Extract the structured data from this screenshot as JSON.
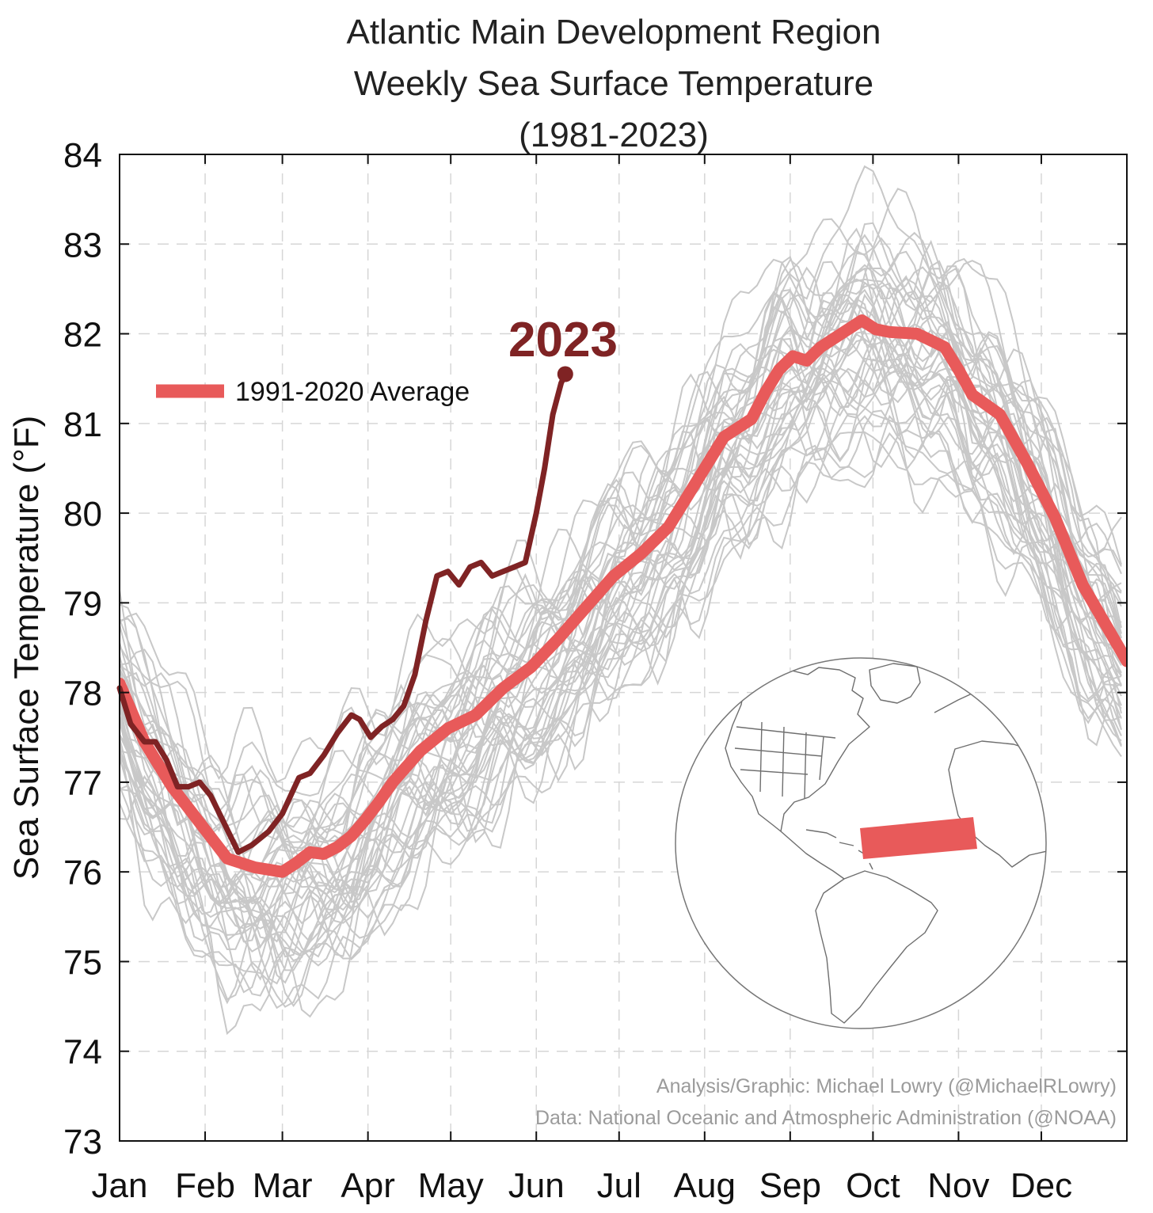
{
  "chart_data": {
    "type": "line",
    "title_lines": [
      "Atlantic Main Development Region",
      "Weekly Sea Surface Temperature",
      "(1981-2023)"
    ],
    "ylabel": "Sea Surface Temperature (°F)",
    "xlabel": "",
    "ylim": [
      73,
      84
    ],
    "yticks": [
      73,
      74,
      75,
      76,
      77,
      78,
      79,
      80,
      81,
      82,
      83,
      84
    ],
    "xticks": [
      {
        "label": "Jan",
        "day": 1
      },
      {
        "label": "Feb",
        "day": 32
      },
      {
        "label": "Mar",
        "day": 60
      },
      {
        "label": "Apr",
        "day": 91
      },
      {
        "label": "May",
        "day": 121
      },
      {
        "label": "Jun",
        "day": 152
      },
      {
        "label": "Jul",
        "day": 182
      },
      {
        "label": "Aug",
        "day": 213
      },
      {
        "label": "Sep",
        "day": 244
      },
      {
        "label": "Oct",
        "day": 274
      },
      {
        "label": "Nov",
        "day": 305
      },
      {
        "label": "Dec",
        "day": 335
      }
    ],
    "xlim": [
      1,
      366
    ],
    "grid": true,
    "colors": {
      "average": "#e85a5a",
      "year2023": "#7f2324",
      "history": "#c8c8c8"
    },
    "series": [
      {
        "name": "1991-2020 Average",
        "x": [
          1,
          10,
          20,
          30,
          40,
          50,
          60,
          65,
          70,
          75,
          80,
          85,
          90,
          95,
          100,
          110,
          120,
          130,
          140,
          150,
          160,
          170,
          180,
          190,
          200,
          210,
          220,
          230,
          235,
          240,
          245,
          250,
          255,
          260,
          270,
          275,
          280,
          290,
          300,
          305,
          310,
          320,
          330,
          340,
          350,
          366
        ],
        "y": [
          78.1,
          77.45,
          76.95,
          76.55,
          76.15,
          76.05,
          76.0,
          76.1,
          76.22,
          76.2,
          76.28,
          76.4,
          76.58,
          76.78,
          77.0,
          77.35,
          77.6,
          77.75,
          78.05,
          78.28,
          78.6,
          78.95,
          79.3,
          79.55,
          79.85,
          80.35,
          80.85,
          81.05,
          81.35,
          81.6,
          81.75,
          81.7,
          81.85,
          81.95,
          82.15,
          82.05,
          82.02,
          82.0,
          81.85,
          81.6,
          81.32,
          81.1,
          80.55,
          79.95,
          79.2,
          78.35
        ]
      },
      {
        "name": "2023",
        "x": [
          1,
          5,
          10,
          14,
          18,
          22,
          26,
          30,
          34,
          38,
          44,
          49,
          55,
          60,
          66,
          70,
          75,
          80,
          85,
          88,
          92,
          96,
          100,
          104,
          108,
          112,
          116,
          120,
          124,
          128,
          132,
          136,
          140,
          144,
          148,
          152,
          155,
          158,
          161,
          162.5
        ],
        "y": [
          78.05,
          77.65,
          77.45,
          77.45,
          77.25,
          76.95,
          76.95,
          77.0,
          76.85,
          76.6,
          76.22,
          76.3,
          76.45,
          76.65,
          77.05,
          77.1,
          77.3,
          77.55,
          77.75,
          77.7,
          77.5,
          77.62,
          77.7,
          77.85,
          78.2,
          78.8,
          79.3,
          79.35,
          79.2,
          79.4,
          79.45,
          79.3,
          79.35,
          79.4,
          79.45,
          80.0,
          80.5,
          81.1,
          81.45,
          81.55
        ]
      }
    ],
    "annotation": "2023",
    "legend": {
      "position": "upper-left",
      "entries": [
        "1991-2020 Average"
      ]
    },
    "credits": [
      "Analysis/Graphic: Michael Lowry (@MichaelRLowry)",
      "Data: National Oceanic and Atmospheric Administration (@NOAA)"
    ]
  }
}
